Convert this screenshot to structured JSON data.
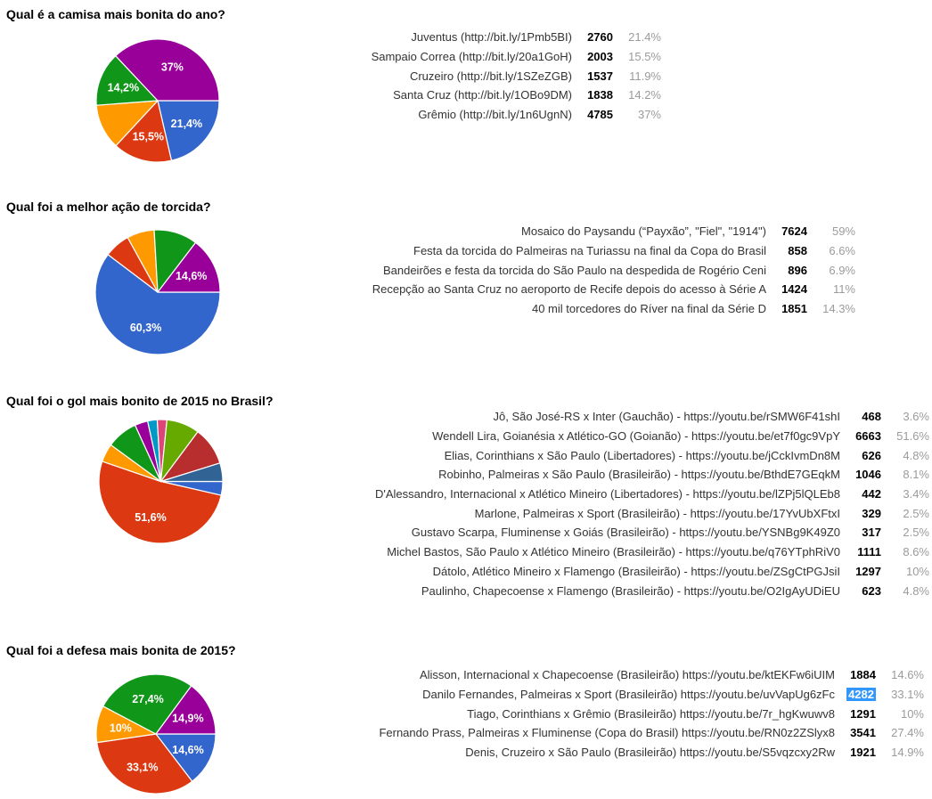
{
  "palette": [
    "#3366CC",
    "#DC3912",
    "#FF9900",
    "#109618",
    "#990099",
    "#0099C6",
    "#DD4477",
    "#66AA00",
    "#B82E2E",
    "#316395"
  ],
  "highlight_color": "#3297FD",
  "chart_data": [
    {
      "type": "pie",
      "title": "Qual é a camisa mais bonita do ano?",
      "legend_position": "none",
      "categories": [
        "Juventus (http://bit.ly/1Pmb5BI)",
        "Sampaio Correa (http://bit.ly/20a1GoH)",
        "Cruzeiro (http://bit.ly/1SZeZGB)",
        "Santa Cruz (http://bit.ly/1OBo9DM)",
        "Grêmio (http://bit.ly/1n6UgnN)"
      ],
      "counts": [
        "2760",
        "2003",
        "1537",
        "1838",
        "4785"
      ],
      "percents": [
        "21.4%",
        "15.5%",
        "11.9%",
        "14.2%",
        "37%"
      ],
      "pie_values": [
        21.4,
        15.5,
        11.9,
        14.2,
        37
      ],
      "slice_labels": [
        "21,4%",
        "15,5%",
        "",
        "14,2%",
        "37%"
      ],
      "color_indexes": [
        0,
        1,
        2,
        3,
        4
      ],
      "highlight_count_index": -1
    },
    {
      "type": "pie",
      "title": "Qual foi a melhor ação de torcida?",
      "legend_position": "none",
      "categories": [
        "Mosaico do Paysandu (“Payxão”, \"Fiel\", \"1914\")",
        "Festa da torcida do Palmeiras na Turiassu na final da Copa do Brasil",
        "Bandeirões e festa da torcida do São Paulo na despedida de Rogério Ceni",
        "Recepção ao Santa Cruz no aeroporto de Recife depois do acesso à Série A",
        "40 mil torcedores do Ríver na final da Série D"
      ],
      "counts": [
        "7624",
        "858",
        "896",
        "1424",
        "1851"
      ],
      "percents": [
        "59%",
        "6.6%",
        "6.9%",
        "11%",
        "14.3%"
      ],
      "pie_values": [
        60.3,
        6.7,
        7.1,
        11.3,
        14.6
      ],
      "slice_labels": [
        "60,3%",
        "",
        "",
        "",
        "14,6%"
      ],
      "color_indexes": [
        0,
        1,
        2,
        3,
        4
      ],
      "highlight_count_index": -1
    },
    {
      "type": "pie",
      "title": "Qual foi o gol mais bonito de 2015 no Brasil?",
      "legend_position": "none",
      "categories": [
        "Jô, São José-RS x Inter (Gauchão) - https://youtu.be/rSMW6F41shI",
        "Wendell Lira, Goianésia x Atlético-GO (Goianão) - https://youtu.be/et7f0gc9VpY",
        "Elias, Corinthians x São Paulo (Libertadores) - https://youtu.be/jCckIvmDn8M",
        "Robinho, Palmeiras x São Paulo (Brasileirão) - https://youtu.be/BthdE7GEqkM",
        "D'Alessandro, Internacional x Atlético Mineiro (Libertadores) - https://youtu.be/lZPj5lQLEb8",
        "Marlone, Palmeiras x Sport (Brasileirão) - https://youtu.be/17YvUbXFtxI",
        "Gustavo Scarpa, Fluminense x Goiás (Brasileirão) - https://youtu.be/YSNBg9K49Z0",
        "Michel Bastos, São Paulo x Atlético Mineiro (Brasileirão) - https://youtu.be/q76YTphRiV0",
        "Dátolo, Atlético Mineiro x Flamengo (Brasileirão) - https://youtu.be/ZSgCtPGJsiI",
        "Paulinho, Chapecoense x Flamengo (Brasileirão) - https://youtu.be/O2IgAyUDiEU"
      ],
      "counts": [
        "468",
        "6663",
        "626",
        "1046",
        "442",
        "329",
        "317",
        "1111",
        "1297",
        "623"
      ],
      "percents": [
        "3.6%",
        "51.6%",
        "4.8%",
        "8.1%",
        "3.4%",
        "2.5%",
        "2.5%",
        "8.6%",
        "10%",
        "4.8%"
      ],
      "pie_values": [
        3.6,
        51.6,
        4.8,
        8.1,
        3.4,
        2.5,
        2.5,
        8.6,
        10,
        4.8
      ],
      "slice_labels": [
        "",
        "51,6%",
        "",
        "",
        "",
        "",
        "",
        "",
        "",
        ""
      ],
      "color_indexes": [
        0,
        1,
        2,
        3,
        4,
        5,
        6,
        7,
        8,
        9
      ],
      "highlight_count_index": -1
    },
    {
      "type": "pie",
      "title": "Qual foi a defesa mais bonita de 2015?",
      "legend_position": "none",
      "categories": [
        "Alisson, Internacional x Chapecoense (Brasileirão) https://youtu.be/ktEKFw6iUIM",
        "Danilo Fernandes, Palmeiras x Sport (Brasileirão) https://youtu.be/uvVapUg6zFc",
        "Tiago, Corinthians x Grêmio (Brasileirão) https://youtu.be/7r_hgKwuwv8",
        "Fernando Prass, Palmeiras x Fluminense (Copa do Brasil) https://youtu.be/RN0z2ZSlyx8",
        "Denis, Cruzeiro x São Paulo (Brasileirão) https://youtu.be/S5vqzcxy2Rw"
      ],
      "counts": [
        "1884",
        "4282",
        "1291",
        "3541",
        "1921"
      ],
      "percents": [
        "14.6%",
        "33.1%",
        "10%",
        "27.4%",
        "14.9%"
      ],
      "pie_values": [
        14.6,
        33.1,
        10,
        27.4,
        14.9
      ],
      "slice_labels": [
        "14,6%",
        "33,1%",
        "10%",
        "27,4%",
        "14,9%"
      ],
      "color_indexes": [
        0,
        1,
        2,
        3,
        4
      ],
      "highlight_count_index": 1
    }
  ]
}
